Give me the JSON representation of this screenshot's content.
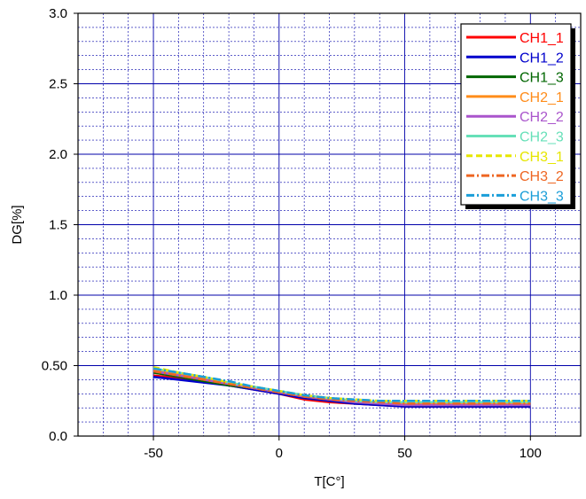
{
  "chart_data": {
    "type": "line",
    "xlabel": "T[C°]",
    "ylabel": "DG[%]",
    "xlim": [
      -80,
      120
    ],
    "ylim": [
      0.0,
      3.0
    ],
    "x_ticks": [
      -50,
      0,
      50,
      100
    ],
    "x_tick_labels": [
      "-50",
      "0",
      "50",
      "100"
    ],
    "y_ticks": [
      0.0,
      0.5,
      1.0,
      1.5,
      2.0,
      2.5,
      3.0
    ],
    "y_tick_labels": [
      "0.0",
      "0.50",
      "1.0",
      "1.5",
      "2.0",
      "2.5",
      "3.0"
    ],
    "minor_grid_x_step": 10,
    "minor_grid_y_step": 0.1,
    "grid": true,
    "legend_position": "top-right",
    "x": [
      -50,
      -40,
      -30,
      -20,
      -10,
      0,
      10,
      20,
      30,
      40,
      50,
      60,
      70,
      80,
      90,
      100
    ],
    "series": [
      {
        "name": "CH1_1",
        "color": "#ff0000",
        "dash": "solid",
        "values": [
          0.43,
          0.41,
          0.39,
          0.36,
          0.33,
          0.3,
          0.26,
          0.24,
          0.23,
          0.22,
          0.21,
          0.21,
          0.21,
          0.21,
          0.21,
          0.21
        ]
      },
      {
        "name": "CH1_2",
        "color": "#0000cc",
        "dash": "solid",
        "values": [
          0.42,
          0.4,
          0.38,
          0.36,
          0.33,
          0.3,
          0.27,
          0.25,
          0.23,
          0.22,
          0.21,
          0.21,
          0.21,
          0.21,
          0.21,
          0.21
        ]
      },
      {
        "name": "CH1_3",
        "color": "#006600",
        "dash": "solid",
        "values": [
          0.45,
          0.42,
          0.39,
          0.36,
          0.34,
          0.31,
          0.28,
          0.26,
          0.24,
          0.23,
          0.22,
          0.22,
          0.22,
          0.22,
          0.22,
          0.22
        ]
      },
      {
        "name": "CH2_1",
        "color": "#ff8c1a",
        "dash": "solid",
        "values": [
          0.47,
          0.44,
          0.41,
          0.37,
          0.34,
          0.31,
          0.29,
          0.27,
          0.25,
          0.24,
          0.23,
          0.23,
          0.23,
          0.23,
          0.23,
          0.23
        ]
      },
      {
        "name": "CH2_2",
        "color": "#aa55cc",
        "dash": "solid",
        "values": [
          0.46,
          0.43,
          0.4,
          0.37,
          0.34,
          0.31,
          0.28,
          0.26,
          0.24,
          0.23,
          0.22,
          0.22,
          0.22,
          0.22,
          0.22,
          0.22
        ]
      },
      {
        "name": "CH2_3",
        "color": "#66e0b8",
        "dash": "solid",
        "values": [
          0.48,
          0.45,
          0.42,
          0.38,
          0.35,
          0.32,
          0.29,
          0.27,
          0.25,
          0.24,
          0.24,
          0.24,
          0.24,
          0.24,
          0.24,
          0.24
        ]
      },
      {
        "name": "CH3_1",
        "color": "#e6e600",
        "dash": "dashed",
        "values": [
          0.49,
          0.45,
          0.42,
          0.38,
          0.35,
          0.32,
          0.29,
          0.27,
          0.26,
          0.25,
          0.25,
          0.25,
          0.25,
          0.25,
          0.25,
          0.25
        ]
      },
      {
        "name": "CH3_2",
        "color": "#ee6622",
        "dash": "dashdot",
        "values": [
          0.46,
          0.43,
          0.4,
          0.37,
          0.34,
          0.31,
          0.28,
          0.26,
          0.25,
          0.24,
          0.23,
          0.23,
          0.23,
          0.23,
          0.23,
          0.23
        ]
      },
      {
        "name": "CH3_3",
        "color": "#1a9ed9",
        "dash": "dashdot",
        "values": [
          0.48,
          0.45,
          0.42,
          0.39,
          0.35,
          0.32,
          0.29,
          0.27,
          0.26,
          0.25,
          0.25,
          0.25,
          0.25,
          0.25,
          0.25,
          0.25
        ]
      }
    ]
  }
}
